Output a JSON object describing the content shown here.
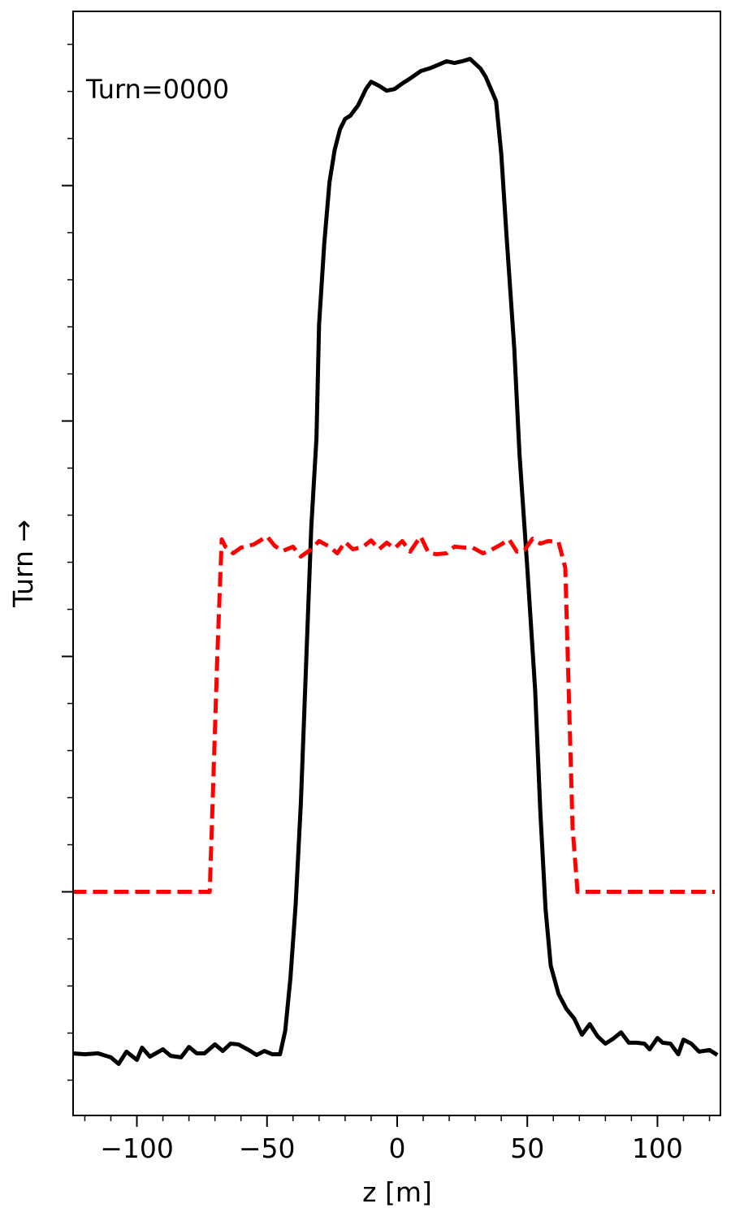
{
  "chart_data": {
    "type": "line",
    "annotation": "Turn=0000",
    "ylabel": "Turn →",
    "xlabel": "z [m]",
    "xlim": [
      -124.5,
      124.2
    ],
    "ylim": [
      -0.95,
      3.74
    ],
    "xticks": [
      {
        "value": -100,
        "label": "−100"
      },
      {
        "value": -50,
        "label": "−50"
      },
      0,
      50,
      100
    ],
    "xminorticks": [
      -120,
      -110,
      -90,
      -80,
      -70,
      -60,
      -40,
      -30,
      -20,
      -10,
      10,
      20,
      30,
      40,
      60,
      70,
      80,
      90,
      110,
      120
    ],
    "yticks": [
      0,
      1,
      2,
      3
    ],
    "yminorticks": [
      -0.8,
      -0.6,
      -0.4,
      -0.2,
      0.2,
      0.4,
      0.6,
      0.8,
      1.2,
      1.4,
      1.6,
      1.8,
      2.2,
      2.4,
      2.6,
      2.8,
      3.2,
      3.4,
      3.6
    ],
    "series": [
      {
        "color": "#000000",
        "dash": false,
        "x": [
          -125,
          -120,
          -115,
          -110,
          -107,
          -104,
          -100,
          -98,
          -95,
          -90,
          -87,
          -83,
          -80,
          -77,
          -74,
          -70,
          -67,
          -64,
          -61,
          -57,
          -54,
          -51,
          -48,
          -45,
          -43,
          -41,
          -39,
          -37,
          -35,
          -33,
          -31,
          -30,
          -28,
          -26,
          -24,
          -22,
          -20,
          -18,
          -15,
          -12,
          -10,
          -7,
          -4,
          -1,
          2,
          5,
          9,
          13,
          16,
          19,
          22,
          25,
          28,
          32,
          34,
          38,
          40,
          42,
          45,
          47,
          50,
          53,
          55,
          57,
          59,
          62,
          65,
          68,
          71,
          74,
          77,
          80,
          83,
          86,
          89,
          92,
          95,
          97,
          100,
          102,
          105,
          108,
          110,
          113,
          116,
          120,
          123
        ],
        "values": [
          -0.686,
          -0.69,
          -0.686,
          -0.703,
          -0.731,
          -0.679,
          -0.714,
          -0.662,
          -0.7,
          -0.669,
          -0.697,
          -0.703,
          -0.659,
          -0.686,
          -0.686,
          -0.648,
          -0.676,
          -0.645,
          -0.648,
          -0.672,
          -0.693,
          -0.676,
          -0.69,
          -0.69,
          -0.59,
          -0.366,
          -0.055,
          0.376,
          0.962,
          1.548,
          1.928,
          2.41,
          2.755,
          3.014,
          3.152,
          3.238,
          3.283,
          3.297,
          3.341,
          3.41,
          3.441,
          3.424,
          3.403,
          3.41,
          3.434,
          3.455,
          3.486,
          3.5,
          3.514,
          3.528,
          3.521,
          3.528,
          3.538,
          3.497,
          3.462,
          3.359,
          3.134,
          2.79,
          2.307,
          1.859,
          1.376,
          0.859,
          0.341,
          -0.072,
          -0.314,
          -0.434,
          -0.497,
          -0.538,
          -0.607,
          -0.562,
          -0.614,
          -0.645,
          -0.624,
          -0.597,
          -0.641,
          -0.641,
          -0.645,
          -0.669,
          -0.621,
          -0.641,
          -0.645,
          -0.69,
          -0.628,
          -0.645,
          -0.679,
          -0.672,
          -0.693
        ]
      },
      {
        "color": "#ff0000",
        "dash": true,
        "x": [
          -125,
          -72,
          -70.5,
          -69,
          -67.4,
          -66,
          -63,
          -60,
          -55,
          -50,
          -47,
          -44,
          -40,
          -37,
          -33,
          -30,
          -26,
          -23,
          -20,
          -17,
          -13,
          -10,
          -7,
          -4,
          -1,
          2,
          5,
          9,
          12,
          15,
          19,
          22,
          26,
          29,
          33,
          36,
          40,
          43,
          46,
          49,
          52,
          55,
          58,
          62,
          64.6,
          65.9,
          67.4,
          69.3,
          122
        ],
        "values": [
          0,
          0,
          0.514,
          1.031,
          1.497,
          1.466,
          1.438,
          1.462,
          1.476,
          1.51,
          1.469,
          1.448,
          1.466,
          1.424,
          1.455,
          1.49,
          1.466,
          1.438,
          1.486,
          1.455,
          1.466,
          1.493,
          1.455,
          1.483,
          1.459,
          1.49,
          1.445,
          1.51,
          1.441,
          1.434,
          1.438,
          1.466,
          1.462,
          1.462,
          1.438,
          1.452,
          1.476,
          1.497,
          1.445,
          1.452,
          1.5,
          1.479,
          1.49,
          1.486,
          1.376,
          0.859,
          0.272,
          0,
          0
        ]
      }
    ]
  }
}
